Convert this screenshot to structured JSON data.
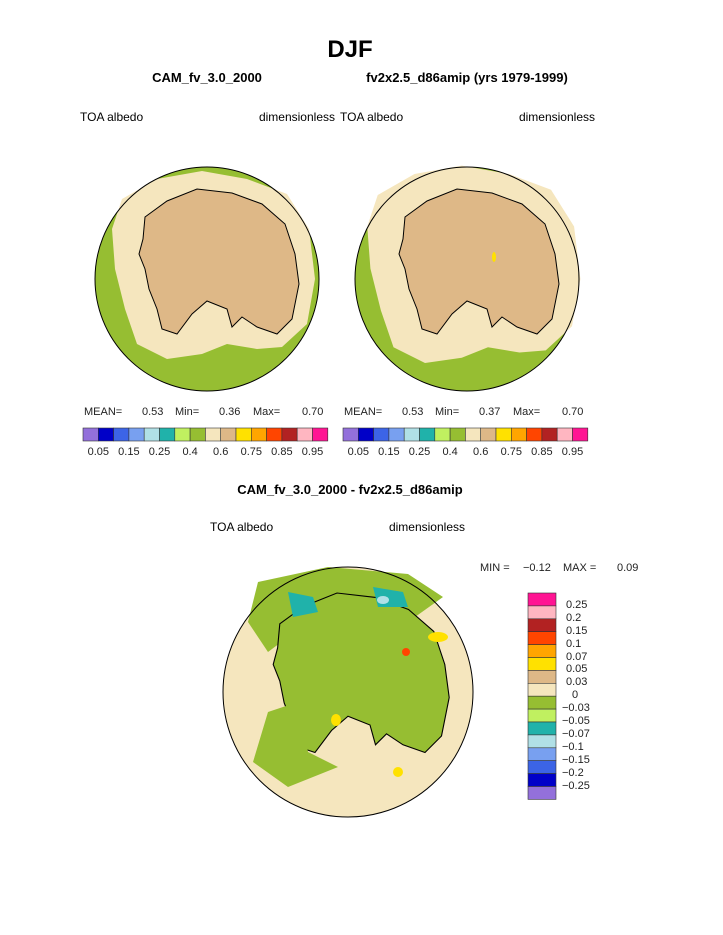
{
  "title": "DJF",
  "panels": [
    {
      "case": "CAM_fv_3.0_2000",
      "variable": "TOA albedo",
      "units": "dimensionless",
      "mean_label": "MEAN=",
      "mean": "0.53",
      "min_label": "Min=",
      "min": "0.36",
      "max_label": "Max=",
      "max": "0.70"
    },
    {
      "case": "fv2x2.5_d86amip (yrs 1979-1999)",
      "variable": "TOA albedo",
      "units": "dimensionless",
      "mean_label": "MEAN=",
      "mean": "0.53",
      "min_label": "Min=",
      "min": "0.37",
      "max_label": "Max=",
      "max": "0.70"
    }
  ],
  "diff": {
    "title": "CAM_fv_3.0_2000 - fv2x2.5_d86amip",
    "variable": "TOA albedo",
    "units": "dimensionless",
    "min_label": "MIN =",
    "min": "−0.12",
    "max_label": "MAX =",
    "max": "0.09"
  },
  "chart_data": {
    "type": "heatmap",
    "projection": "south polar stereographic",
    "colorbar": {
      "colors": [
        "#9370db",
        "#0000c8",
        "#3c64e6",
        "#78a0f0",
        "#b0e0e6",
        "#20b2aa",
        "#c0f060",
        "#96be32",
        "#f5e6be",
        "#deb887",
        "#ffe100",
        "#ffa500",
        "#ff4500",
        "#b22222",
        "#ffb6c1",
        "#ff1493"
      ],
      "labels": [
        "0.05",
        "0.15",
        "0.25",
        "0.4",
        "0.6",
        "0.75",
        "0.85",
        "0.95"
      ]
    },
    "diff_colorbar": {
      "colors": [
        "#ff1493",
        "#ffb6c1",
        "#b22222",
        "#ff4500",
        "#ffa500",
        "#ffe100",
        "#deb887",
        "#f5e6be",
        "#96be32",
        "#c0f060",
        "#20b2aa",
        "#b0e0e6",
        "#78a0f0",
        "#3c64e6",
        "#0000c8",
        "#9370db"
      ],
      "labels": [
        "0.25",
        "0.2",
        "0.15",
        "0.1",
        "0.07",
        "0.05",
        "0.03",
        "0",
        "−0.03",
        "−0.05",
        "−0.07",
        "−0.1",
        "−0.15",
        "−0.2",
        "−0.25"
      ]
    }
  }
}
